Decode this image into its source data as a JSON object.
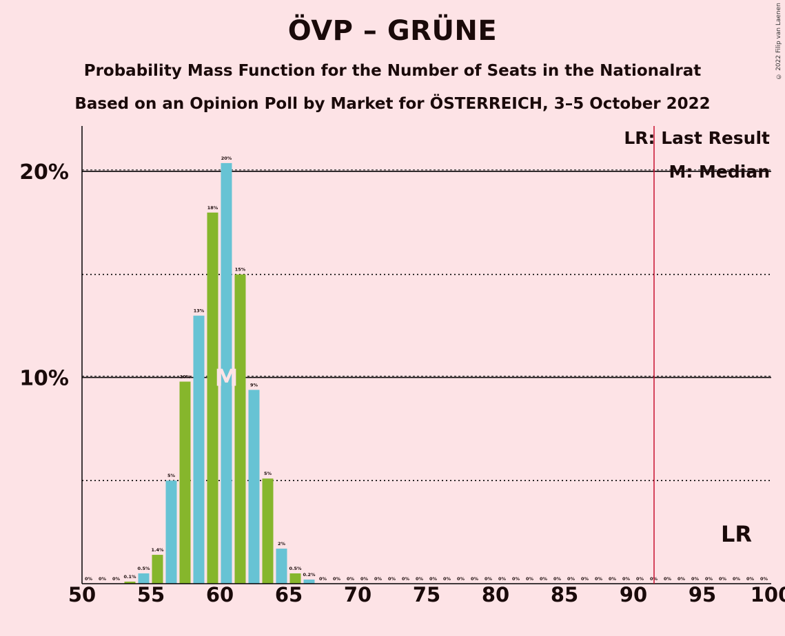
{
  "header": {
    "title": "ÖVP – GRÜNE",
    "subtitle_1": "Probability Mass Function for the Number of Seats in the Nationalrat",
    "subtitle_2": "Based on an Opinion Poll by Market for ÖSTERREICH, 3–5 October 2022",
    "copyright": "© 2022 Filip van Laenen"
  },
  "legend": {
    "last_result": "LR: Last Result",
    "median": "M: Median"
  },
  "colors": {
    "background": "#FDE3E6",
    "bar_odd": "#67C3D4",
    "bar_even": "#86B62C",
    "last_result_line": "#C8102E"
  },
  "chart_data": {
    "type": "bar",
    "x": [
      50,
      51,
      52,
      53,
      54,
      55,
      56,
      57,
      58,
      59,
      60,
      61,
      62,
      63,
      64,
      65,
      66,
      67,
      68,
      69,
      70,
      71,
      72,
      73,
      74,
      75,
      76,
      77,
      78,
      79,
      80,
      81,
      82,
      83,
      84,
      85,
      86,
      87,
      88,
      89,
      90,
      91,
      92,
      93,
      94,
      95,
      96,
      97,
      98,
      99,
      100
    ],
    "values": [
      0,
      0,
      0,
      0.1,
      0.5,
      1.4,
      5,
      9.8,
      13,
      18,
      20.4,
      15,
      9.4,
      5.1,
      1.7,
      0.5,
      0.2,
      0,
      0,
      0,
      0,
      0,
      0,
      0,
      0,
      0,
      0,
      0,
      0,
      0,
      0,
      0,
      0,
      0,
      0,
      0,
      0,
      0,
      0,
      0,
      0,
      0,
      0,
      0,
      0,
      0,
      0,
      0,
      0,
      0,
      0
    ],
    "labels": [
      "0%",
      "0%",
      "0%",
      "0.1%",
      "0.5%",
      "1.4%",
      "5%",
      "10%",
      "13%",
      "18%",
      "20%",
      "15%",
      "9%",
      "5%",
      "2%",
      "0.5%",
      "0.2%",
      "0%",
      "0%",
      "0%",
      "0%",
      "0%",
      "0%",
      "0%",
      "0%",
      "0%",
      "0%",
      "0%",
      "0%",
      "0%",
      "0%",
      "0%",
      "0%",
      "0%",
      "0%",
      "0%",
      "0%",
      "0%",
      "0%",
      "0%",
      "0%",
      "0%",
      "0%",
      "0%",
      "0%",
      "0%",
      "0%",
      "0%",
      "0%",
      "0%",
      ""
    ],
    "xlim": [
      50,
      100
    ],
    "ylim": [
      0,
      22.2
    ],
    "x_ticks": [
      "50",
      "55",
      "60",
      "65",
      "70",
      "75",
      "80",
      "85",
      "90",
      "95",
      "100"
    ],
    "y_ticks": [
      {
        "value": 10,
        "label": "10%"
      },
      {
        "value": 20,
        "label": "20%"
      }
    ],
    "minor_y_ticks": [
      5,
      15
    ],
    "median": 60,
    "median_marker": "M",
    "last_result": 91.5,
    "last_result_marker": "LR",
    "last_result_marker_x": 97
  }
}
